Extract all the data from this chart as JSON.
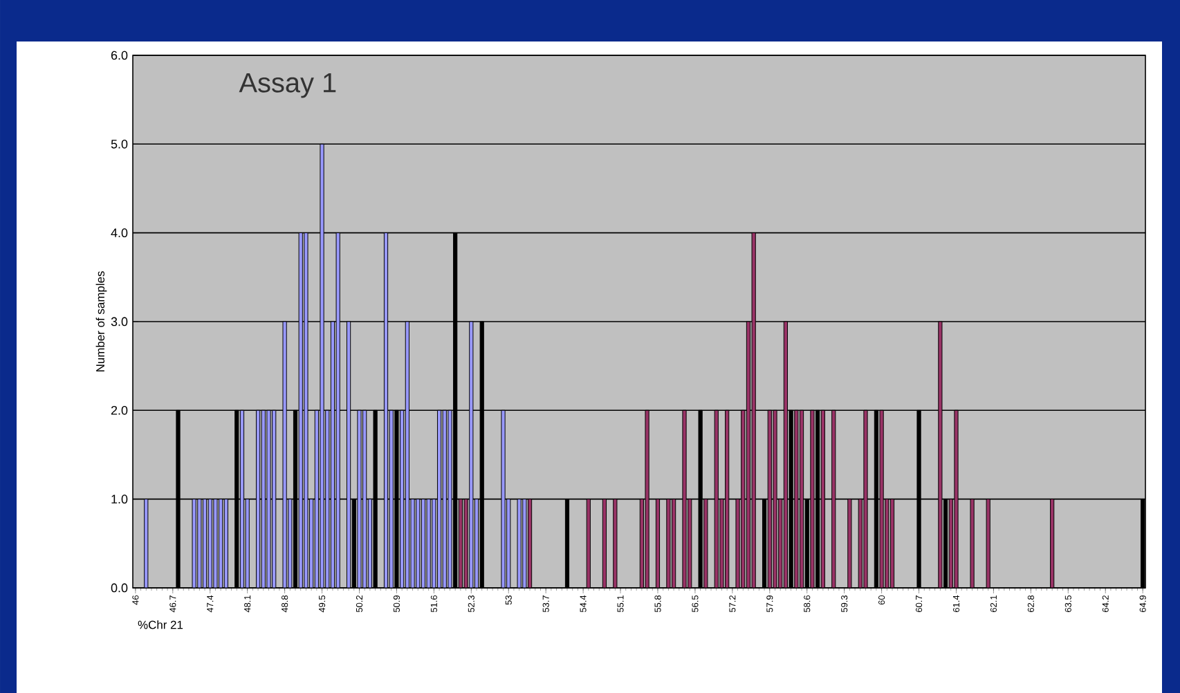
{
  "chart_data": {
    "type": "bar",
    "title": "Assay 1",
    "xlabel": "%Chr 21",
    "ylabel": "Number of samples",
    "categories": [
      "46",
      null,
      null,
      null,
      null,
      null,
      null,
      "46.7",
      null,
      null,
      null,
      null,
      null,
      null,
      "47.4",
      null,
      null,
      null,
      null,
      null,
      null,
      "48.1",
      null,
      null,
      null,
      null,
      null,
      null,
      "48.8",
      null,
      null,
      null,
      null,
      null,
      null,
      "49.5",
      null,
      null,
      null,
      null,
      null,
      null,
      "50.2",
      null,
      null,
      null,
      null,
      null,
      null,
      "50.9",
      null,
      null,
      null,
      null,
      null,
      null,
      "51.6",
      null,
      null,
      null,
      null,
      null,
      null,
      "52.3",
      null,
      null,
      null,
      null,
      null,
      null,
      "53",
      null,
      null,
      null,
      null,
      null,
      null,
      "53.7",
      null,
      null,
      null,
      null,
      null,
      null,
      "54.4",
      null,
      null,
      null,
      null,
      null,
      null,
      "55.1",
      null,
      null,
      null,
      null,
      null,
      null,
      "55.8",
      null,
      null,
      null,
      null,
      null,
      null,
      "56.5",
      null,
      null,
      null,
      null,
      null,
      null,
      "57.2",
      null,
      null,
      null,
      null,
      null,
      null,
      "57.9",
      null,
      null,
      null,
      null,
      null,
      null,
      "58.6",
      null,
      null,
      null,
      null,
      null,
      null,
      "59.3",
      null,
      null,
      null,
      null,
      null,
      null,
      "60",
      null,
      null,
      null,
      null,
      null,
      null,
      "60.7",
      null,
      null,
      null,
      null,
      null,
      null,
      "61.4",
      null,
      null,
      null,
      null,
      null,
      null,
      "62.1",
      null,
      null,
      null,
      null,
      null,
      null,
      "62.8",
      null,
      null,
      null,
      null,
      null,
      null,
      "63.5",
      null,
      null,
      null,
      null,
      null,
      null,
      "64.2",
      null,
      null,
      null,
      null,
      null,
      null,
      "64.9"
    ],
    "values": [
      0,
      0,
      1,
      0,
      0,
      0,
      0,
      0,
      2,
      0,
      0,
      1,
      1,
      1,
      1,
      1,
      1,
      1,
      0,
      2,
      2,
      1,
      0,
      2,
      2,
      2,
      2,
      0,
      3,
      1,
      2,
      4,
      4,
      1,
      2,
      5,
      2,
      3,
      4,
      0,
      3,
      1,
      2,
      2,
      1,
      2,
      0,
      4,
      2,
      2,
      2,
      3,
      1,
      1,
      1,
      1,
      1,
      2,
      2,
      2,
      4,
      1,
      1,
      3,
      1,
      3,
      0,
      0,
      0,
      2,
      1,
      0,
      1,
      1,
      1,
      0,
      0,
      0,
      0,
      0,
      0,
      1,
      0,
      0,
      0,
      1,
      0,
      0,
      1,
      0,
      1,
      0,
      0,
      0,
      0,
      1,
      2,
      0,
      1,
      0,
      1,
      1,
      0,
      2,
      1,
      0,
      2,
      1,
      0,
      2,
      1,
      2,
      0,
      1,
      2,
      3,
      4,
      0,
      1,
      2,
      2,
      1,
      3,
      2,
      2,
      2,
      1,
      2,
      2,
      2,
      0,
      2,
      0,
      0,
      1,
      0,
      1,
      2,
      0,
      2,
      2,
      1,
      1,
      0,
      0,
      0,
      0,
      2,
      0,
      0,
      0,
      3,
      1,
      1,
      2,
      0,
      0,
      1,
      0,
      0,
      1,
      0,
      0,
      0,
      0,
      0,
      0,
      0,
      0,
      0,
      0,
      0,
      1,
      0,
      0,
      0,
      0,
      0,
      0,
      0,
      0,
      0,
      0,
      0,
      0,
      0,
      0,
      0,
      0,
      1
    ],
    "colors": [
      "#9999ff",
      "#9999ff",
      "#9999ff",
      "#9999ff",
      "#9999ff",
      "#9999ff",
      "#9999ff",
      "#9999ff",
      "#000000",
      "#9999ff",
      "#9999ff",
      "#9999ff",
      "#9999ff",
      "#9999ff",
      "#9999ff",
      "#9999ff",
      "#9999ff",
      "#9999ff",
      "#9999ff",
      "#000000",
      "#9999ff",
      "#9999ff",
      "#9999ff",
      "#9999ff",
      "#9999ff",
      "#9999ff",
      "#9999ff",
      "#9999ff",
      "#9999ff",
      "#9999ff",
      "#000000",
      "#9999ff",
      "#9999ff",
      "#9999ff",
      "#9999ff",
      "#9999ff",
      "#9999ff",
      "#9999ff",
      "#9999ff",
      "#9999ff",
      "#9999ff",
      "#000000",
      "#9999ff",
      "#9999ff",
      "#9999ff",
      "#000000",
      "#9999ff",
      "#9999ff",
      "#9999ff",
      "#000000",
      "#9999ff",
      "#9999ff",
      "#9999ff",
      "#9999ff",
      "#9999ff",
      "#9999ff",
      "#9999ff",
      "#9999ff",
      "#9999ff",
      "#9999ff",
      "#000000",
      "#993366",
      "#993366",
      "#9999ff",
      "#9999ff",
      "#000000",
      "#9999ff",
      "#9999ff",
      "#9999ff",
      "#9999ff",
      "#9999ff",
      "#9999ff",
      "#9999ff",
      "#9999ff",
      "#993366",
      "#993366",
      "#993366",
      "#993366",
      "#993366",
      "#993366",
      "#993366",
      "#000000",
      "#993366",
      "#993366",
      "#993366",
      "#993366",
      "#993366",
      "#993366",
      "#993366",
      "#993366",
      "#993366",
      "#993366",
      "#993366",
      "#993366",
      "#993366",
      "#993366",
      "#993366",
      "#993366",
      "#993366",
      "#993366",
      "#993366",
      "#993366",
      "#993366",
      "#993366",
      "#993366",
      "#993366",
      "#000000",
      "#993366",
      "#993366",
      "#993366",
      "#993366",
      "#993366",
      "#993366",
      "#993366",
      "#993366",
      "#993366",
      "#993366",
      "#993366",
      "#000000",
      "#993366",
      "#993366",
      "#993366",
      "#993366",
      "#000000",
      "#993366",
      "#993366",
      "#000000",
      "#993366",
      "#000000",
      "#993366",
      "#993366",
      "#993366",
      "#993366",
      "#993366",
      "#993366",
      "#993366",
      "#993366",
      "#993366",
      "#993366",
      "#000000",
      "#993366",
      "#993366",
      "#993366",
      "#993366",
      "#993366",
      "#993366",
      "#993366",
      "#000000",
      "#993366",
      "#993366",
      "#993366",
      "#993366",
      "#000000",
      "#993366",
      "#993366",
      "#993366",
      "#993366",
      "#993366",
      "#993366",
      "#993366",
      "#993366",
      "#993366",
      "#993366",
      "#993366",
      "#993366",
      "#993366",
      "#993366",
      "#993366",
      "#993366",
      "#993366",
      "#993366",
      "#993366",
      "#993366",
      "#993366",
      "#993366",
      "#993366",
      "#993366",
      "#993366",
      "#993366",
      "#993366",
      "#993366",
      "#993366",
      "#993366",
      "#993366",
      "#993366",
      "#993366",
      "#993366",
      "#993366",
      "#993366",
      "#000000"
    ],
    "ylim": [
      0,
      6
    ],
    "yticks": [
      {
        "value": 0,
        "label": "0.0"
      },
      {
        "value": 1,
        "label": "1.0"
      },
      {
        "value": 2,
        "label": "2.0"
      },
      {
        "value": 3,
        "label": "3.0"
      },
      {
        "value": 4,
        "label": "4.0"
      },
      {
        "value": 5,
        "label": "5.0"
      },
      {
        "value": 6,
        "label": "6.0"
      }
    ],
    "grid": "y"
  }
}
